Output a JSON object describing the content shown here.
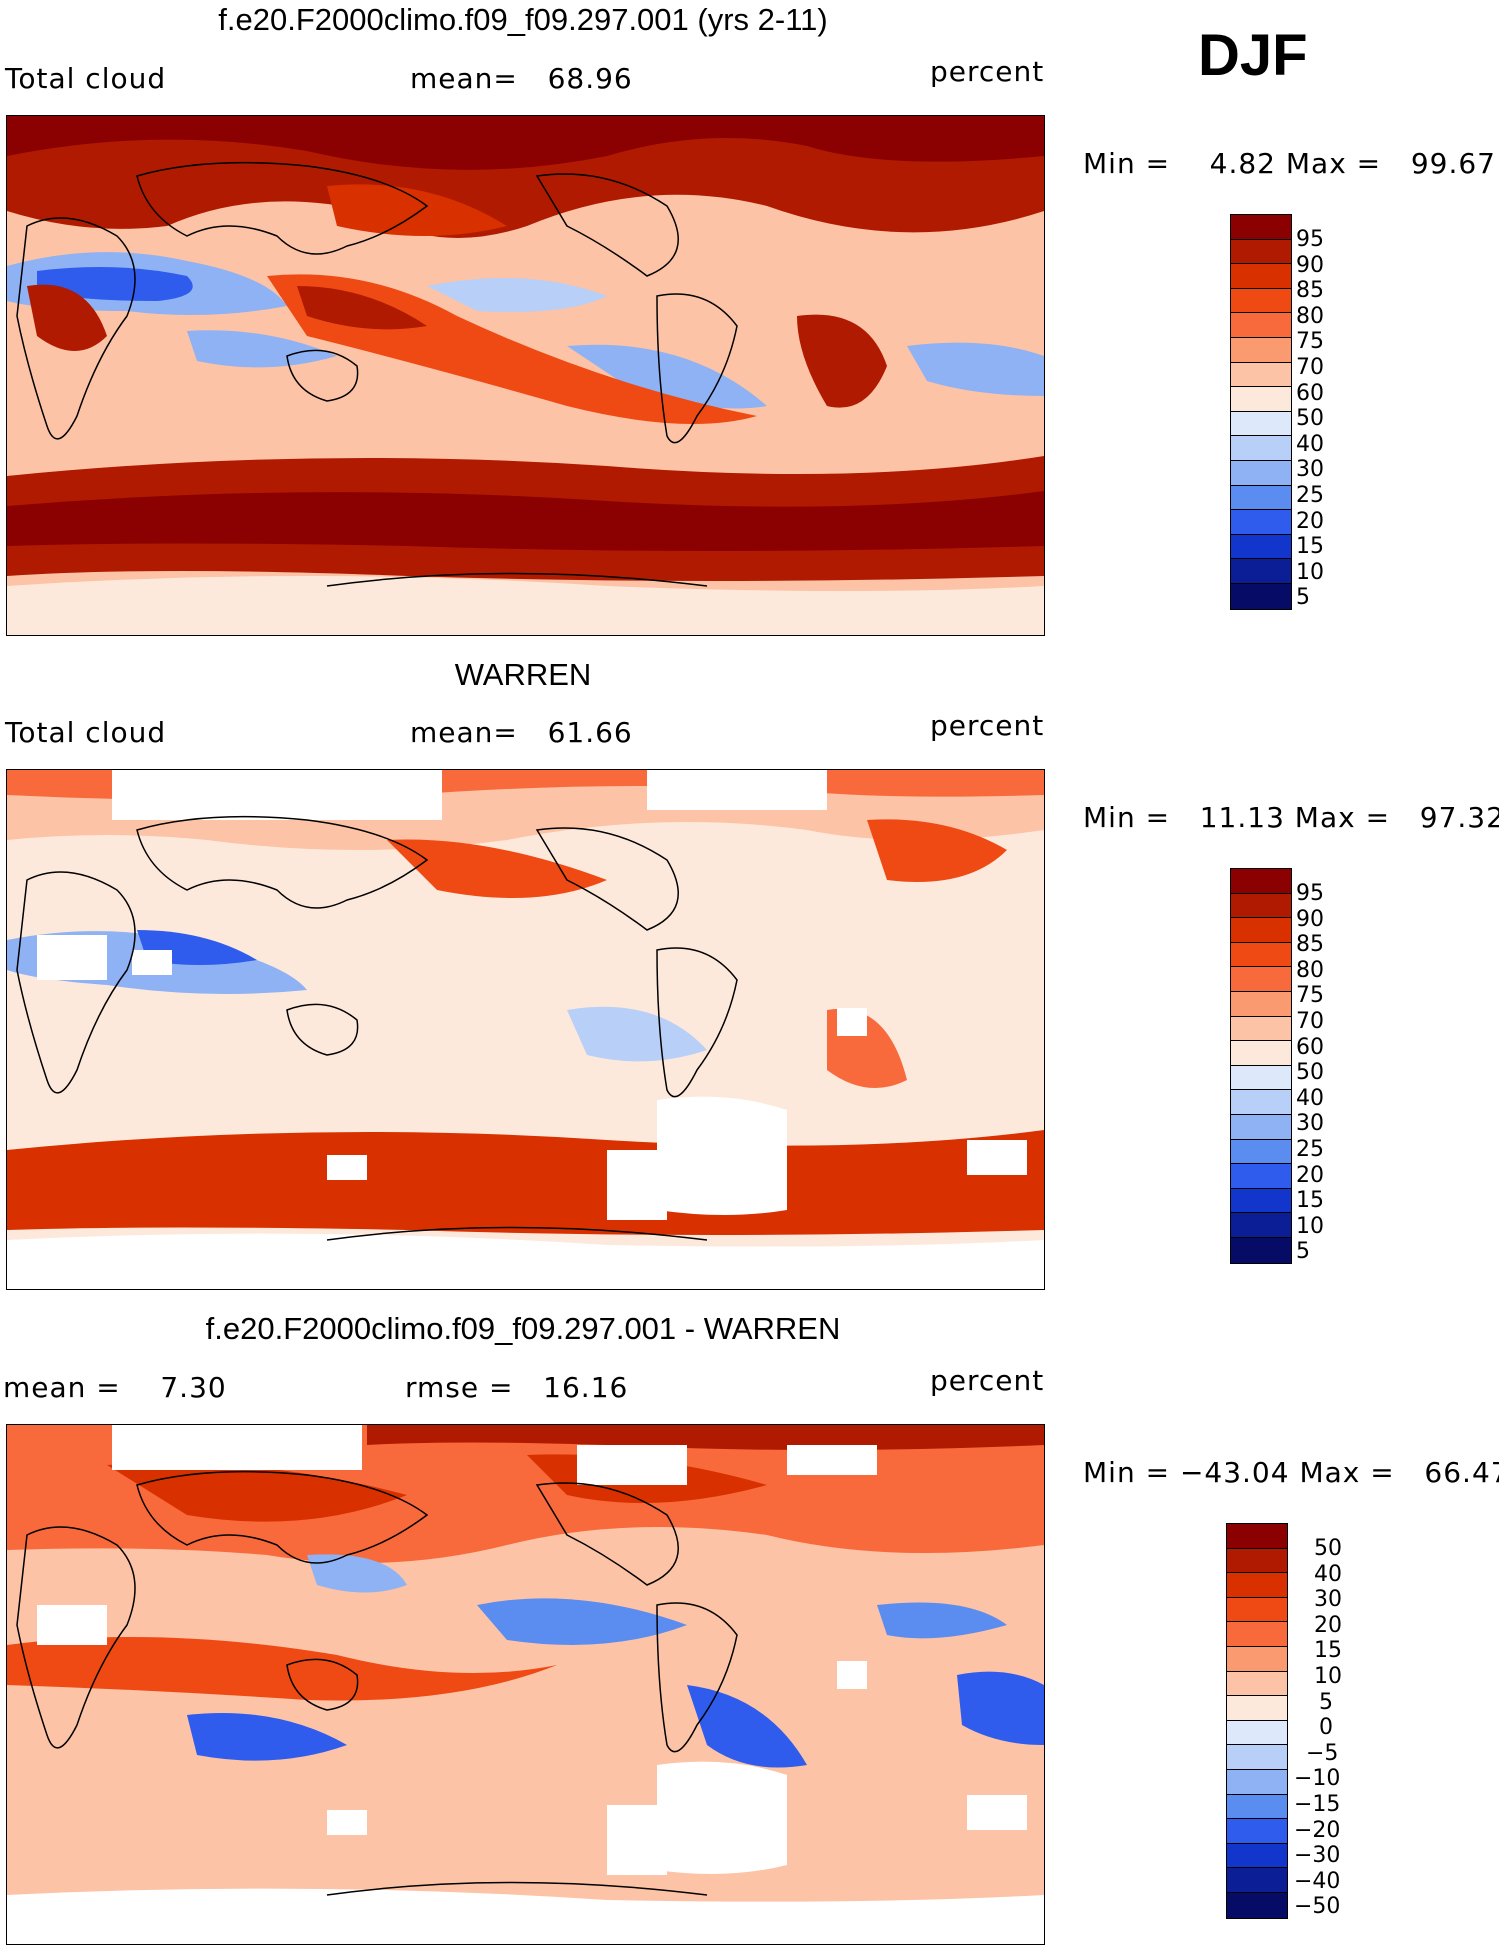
{
  "season": "DJF",
  "panels": [
    {
      "title": "f.e20.F2000climo.f09_f09.297.001 (yrs 2-11)",
      "left_label": "Total cloud",
      "center_label": "mean=   68.96",
      "units": "percent",
      "min_max": "Min =    4.82 Max =   99.67",
      "colorbar_labels": [
        "95",
        "90",
        "85",
        "80",
        "75",
        "70",
        "60",
        "50",
        "40",
        "30",
        "25",
        "20",
        "15",
        "10",
        "5"
      ]
    },
    {
      "title": "WARREN",
      "left_label": "Total cloud",
      "center_label": "mean=   61.66",
      "units": "percent",
      "min_max": "Min =   11.13 Max =   97.32",
      "colorbar_labels": [
        "95",
        "90",
        "85",
        "80",
        "75",
        "70",
        "60",
        "50",
        "40",
        "30",
        "25",
        "20",
        "15",
        "10",
        "5"
      ]
    },
    {
      "title": "f.e20.F2000climo.f09_f09.297.001 - WARREN",
      "left_label": "mean =    7.30",
      "center_label": "rmse =   16.16",
      "units": "percent",
      "min_max": "Min = −43.04 Max =   66.47",
      "colorbar_labels": [
        "50",
        "40",
        "30",
        "20",
        "15",
        "10",
        "5",
        "0",
        "−5",
        "−10",
        "−15",
        "−20",
        "−30",
        "−40",
        "−50"
      ]
    }
  ],
  "colors": {
    "levels": [
      "#8b0000",
      "#b01a00",
      "#d93000",
      "#f04a14",
      "#f8693c",
      "#fa9a70",
      "#fcc3a6",
      "#fde9dc",
      "#dde8fa",
      "#b8cff7",
      "#8eb2f3",
      "#5b8cf0",
      "#2f5cec",
      "#1235cc",
      "#0c1e96",
      "#060c66"
    ]
  }
}
